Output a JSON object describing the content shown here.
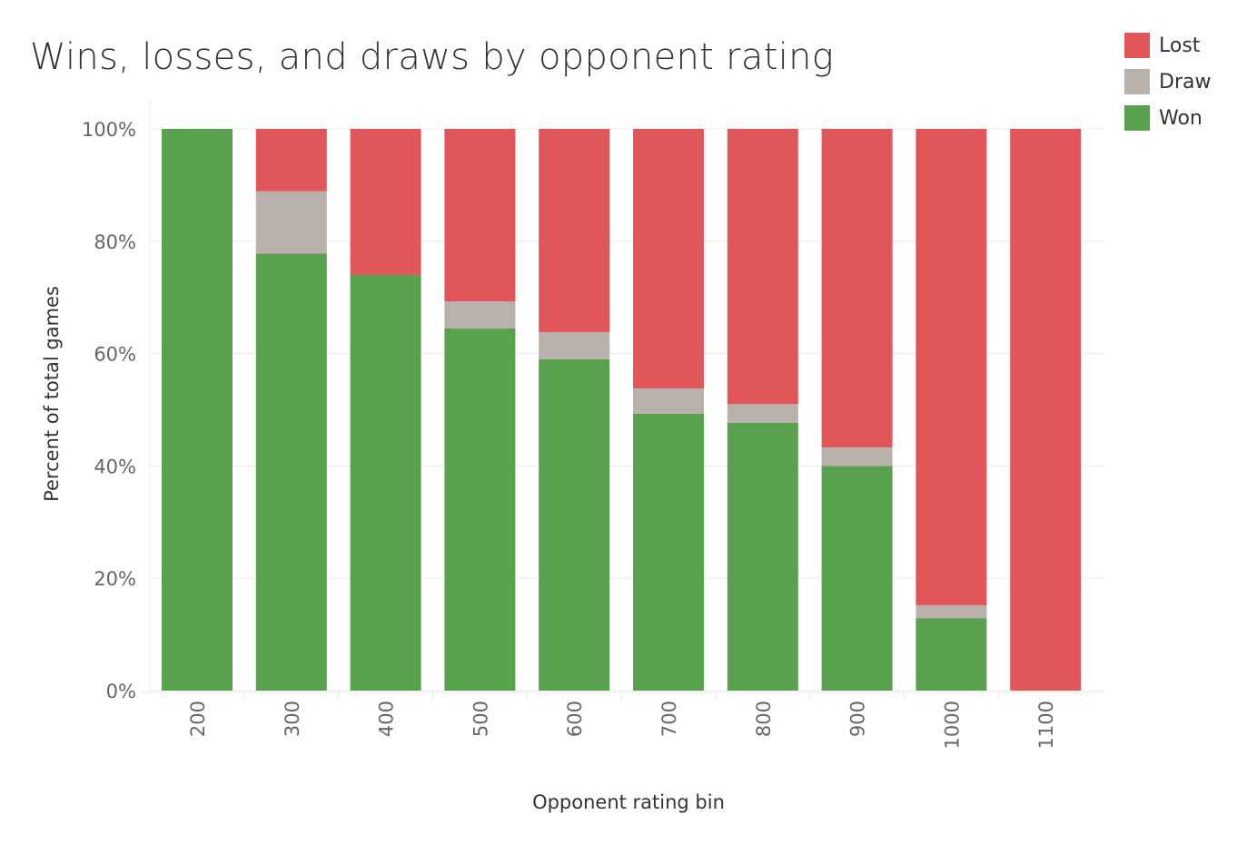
{
  "chart_data": {
    "type": "bar",
    "stacked": true,
    "title": "Wins, losses, and draws by opponent rating",
    "xlabel": "Opponent rating bin",
    "ylabel": "Percent of total games",
    "ylim": [
      0,
      100
    ],
    "yticks": [
      0,
      20,
      40,
      60,
      80,
      100
    ],
    "ytick_labels": [
      "0%",
      "20%",
      "40%",
      "60%",
      "80%",
      "100%"
    ],
    "categories": [
      "200",
      "300",
      "400",
      "500",
      "600",
      "700",
      "800",
      "900",
      "1000",
      "1100"
    ],
    "series": [
      {
        "name": "Won",
        "color": "#59a14f",
        "values": [
          100,
          77.8,
          74,
          64.5,
          59,
          49.3,
          47.7,
          40,
          12.9,
          0
        ]
      },
      {
        "name": "Draw",
        "color": "#bab0ac",
        "values": [
          0,
          11.1,
          0,
          4.8,
          4.8,
          4.5,
          3.3,
          3.3,
          2.3,
          0
        ]
      },
      {
        "name": "Lost",
        "color": "#e15759",
        "values": [
          0,
          11.1,
          26,
          30.7,
          36.2,
          46.2,
          49,
          56.7,
          84.8,
          100
        ]
      }
    ],
    "legend_position": "top-right",
    "legend_order": [
      "Lost",
      "Draw",
      "Won"
    ],
    "grid": true
  }
}
